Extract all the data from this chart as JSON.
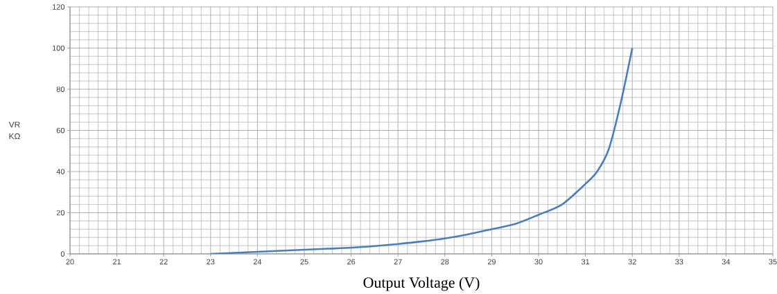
{
  "chart_data": {
    "type": "line",
    "xlabel": "Output Voltage (V)",
    "ylabel": "VR KΩ",
    "x": [
      23,
      23.5,
      24,
      24.5,
      25,
      25.5,
      26,
      26.5,
      27,
      27.5,
      28,
      28.5,
      29,
      29.5,
      30,
      30.5,
      31,
      31.25,
      31.5,
      31.75,
      32
    ],
    "series": [
      {
        "color": "#4a7ebb",
        "values": [
          0,
          0.5,
          1,
          1.5,
          2,
          2.5,
          3,
          3.8,
          4.8,
          6,
          7.5,
          9.5,
          12,
          14.5,
          19,
          24,
          34,
          40,
          51,
          73,
          100
        ]
      }
    ],
    "xlim": [
      20,
      35
    ],
    "xticks": [
      20,
      21,
      22,
      23,
      24,
      25,
      26,
      27,
      28,
      29,
      30,
      31,
      32,
      33,
      34,
      35
    ],
    "ylim": [
      0,
      120
    ],
    "yticks": [
      0,
      20,
      40,
      60,
      80,
      100,
      120
    ],
    "grid": true,
    "marker": "none",
    "line_style": "solid"
  }
}
